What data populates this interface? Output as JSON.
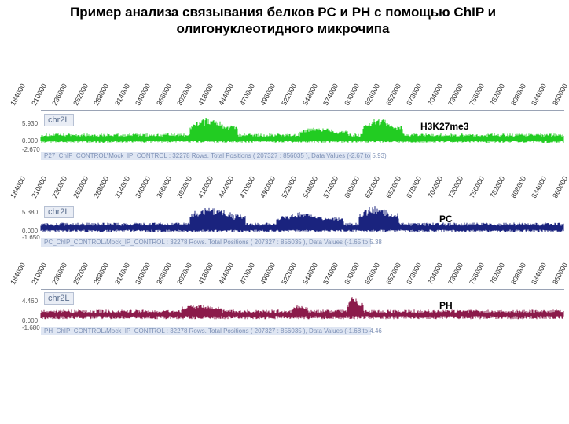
{
  "title": "Пример анализа связывания белков PC и PH с помощью ChIP и олигонуклеотидного микрочипа",
  "panels": [
    {
      "key": "h3k27",
      "ticks": [
        "184000",
        "210000",
        "236000",
        "262000",
        "288000",
        "314000",
        "340000",
        "366000",
        "392000",
        "418000",
        "444000",
        "470000",
        "496000",
        "522000",
        "548000",
        "574000",
        "600000",
        "626000",
        "652000",
        "678000",
        "704000",
        "730000",
        "756000",
        "782000",
        "808000",
        "834000",
        "860000"
      ],
      "chr": "chr2L",
      "y_top": "5.930",
      "y_mid": "0.000",
      "y_bot": "-2.670",
      "info": "P27_ChIP_CONTROL\\Mock_IP_CONTROL : 32278 Rows. Total Positions ( 207327 : 856035 ), Data Values (-2.67 to 5.93)",
      "label": "H3K27me3",
      "color": "#22cc22"
    },
    {
      "key": "pc",
      "ticks": [
        "184000",
        "210000",
        "236000",
        "262000",
        "288000",
        "314000",
        "340000",
        "366000",
        "392000",
        "418000",
        "444000",
        "470000",
        "496000",
        "522000",
        "548000",
        "574000",
        "600000",
        "626000",
        "652000",
        "678000",
        "704000",
        "730000",
        "756000",
        "782000",
        "808000",
        "834000",
        "860000"
      ],
      "chr": "chr2L",
      "y_top": "5.380",
      "y_mid": "0.000",
      "y_bot": "-1.650",
      "info": "PC_ChIP_CONTROL\\Mock_IP_CONTROL : 32278 Rows. Total Positions ( 207327 : 856035 ), Data Values (-1.65 to 5.38",
      "label": "PC",
      "color": "#1a237e"
    },
    {
      "key": "ph",
      "ticks": [
        "184000",
        "210000",
        "236000",
        "262000",
        "288000",
        "314000",
        "340000",
        "366000",
        "392000",
        "418000",
        "444000",
        "470000",
        "496000",
        "522000",
        "548000",
        "574000",
        "600000",
        "626000",
        "652000",
        "678000",
        "704000",
        "730000",
        "756000",
        "782000",
        "808000",
        "834000",
        "860000"
      ],
      "chr": "chr2L",
      "y_top": "4.460",
      "y_mid": "0.000",
      "y_bot": "-1.680",
      "info": "PH_ChIP_CONTROL\\Mock_IP_CONTROL : 32278 Rows. Total Positions ( 207327 : 856035 ), Data Values (-1.68 to 4.46",
      "label": "PH",
      "color": "#8b1a4a"
    }
  ]
}
